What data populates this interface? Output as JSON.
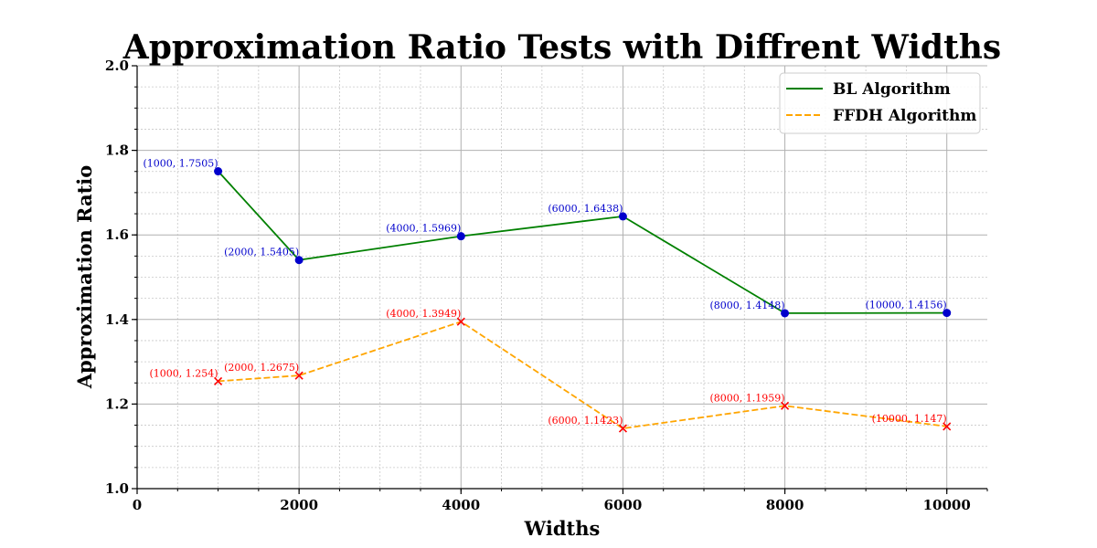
{
  "chart_data": {
    "type": "line",
    "title": "Approximation Ratio Tests with Diffrent Widths",
    "xlabel": "Widths",
    "ylabel": "Approximation Ratio",
    "xlim": [
      0,
      10500
    ],
    "ylim": [
      1.0,
      2.0
    ],
    "xticks": [
      0,
      2000,
      4000,
      6000,
      8000,
      10000
    ],
    "yticks": [
      1.0,
      1.2,
      1.4,
      1.6,
      1.8,
      2.0
    ],
    "grid": true,
    "legend_position": "top-right",
    "series": [
      {
        "name": "BL Algorithm",
        "x": [
          1000,
          2000,
          4000,
          6000,
          8000,
          10000
        ],
        "y": [
          1.7505,
          1.5405,
          1.5969,
          1.6438,
          1.4148,
          1.4156
        ],
        "labels": [
          "(1000, 1.7505)",
          "(2000, 1.5405)",
          "(4000, 1.5969)",
          "(6000, 1.6438)",
          "(8000, 1.4148)",
          "(10000, 1.4156)"
        ],
        "line_color": "#008000",
        "marker_color": "#0000cc",
        "label_color": "#0000cc",
        "line_style": "solid",
        "marker": "circle"
      },
      {
        "name": "FFDH Algorithm",
        "x": [
          1000,
          2000,
          4000,
          6000,
          8000,
          10000
        ],
        "y": [
          1.254,
          1.2675,
          1.3949,
          1.1423,
          1.1959,
          1.147
        ],
        "labels": [
          "(1000, 1.254)",
          "(2000, 1.2675)",
          "(4000, 1.3949)",
          "(6000, 1.1423)",
          "(8000, 1.1959)",
          "(10000, 1.147)"
        ],
        "line_color": "#ffa500",
        "marker_color": "#ff0000",
        "label_color": "#ff0000",
        "line_style": "dashed",
        "marker": "x"
      }
    ]
  }
}
